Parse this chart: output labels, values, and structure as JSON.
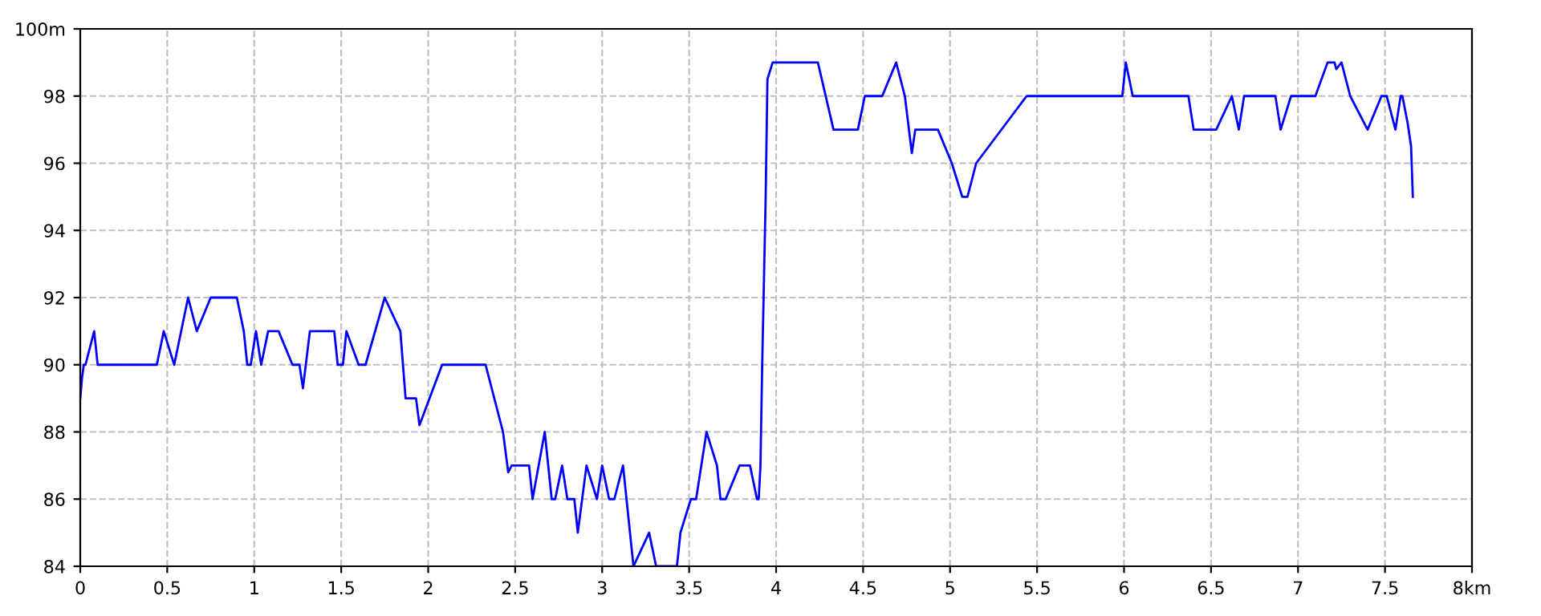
{
  "chart_data": {
    "type": "line",
    "x": [
      0,
      0.01,
      0.02,
      0.03,
      0.08,
      0.1,
      0.44,
      0.48,
      0.54,
      0.62,
      0.67,
      0.75,
      0.9,
      0.94,
      0.96,
      0.98,
      1.01,
      1.04,
      1.08,
      1.14,
      1.22,
      1.26,
      1.28,
      1.32,
      1.46,
      1.48,
      1.51,
      1.53,
      1.6,
      1.64,
      1.75,
      1.84,
      1.87,
      1.93,
      1.95,
      2.08,
      2.33,
      2.43,
      2.46,
      2.48,
      2.58,
      2.6,
      2.67,
      2.71,
      2.73,
      2.77,
      2.8,
      2.84,
      2.86,
      2.91,
      2.97,
      3.0,
      3.04,
      3.07,
      3.12,
      3.18,
      3.27,
      3.31,
      3.43,
      3.45,
      3.51,
      3.54,
      3.6,
      3.66,
      3.68,
      3.71,
      3.79,
      3.85,
      3.89,
      3.9,
      3.91,
      3.92,
      3.94,
      3.95,
      3.98,
      4.24,
      4.33,
      4.47,
      4.51,
      4.61,
      4.69,
      4.74,
      4.78,
      4.8,
      4.93,
      5.01,
      5.07,
      5.1,
      5.15,
      5.44,
      5.99,
      6.01,
      6.05,
      6.37,
      6.4,
      6.53,
      6.62,
      6.66,
      6.69,
      6.87,
      6.9,
      6.96,
      7.1,
      7.17,
      7.21,
      7.22,
      7.25,
      7.3,
      7.4,
      7.48,
      7.51,
      7.56,
      7.59,
      7.6,
      7.63,
      7.65,
      7.66
    ],
    "series": [
      {
        "color": "#0000ff",
        "values": [
          89,
          89.6,
          90,
          90,
          91,
          90,
          90,
          91,
          90,
          92,
          91,
          92,
          92,
          91,
          90,
          90,
          91,
          90,
          91,
          91,
          90,
          90,
          89.3,
          91,
          91,
          90,
          90,
          91,
          90,
          90,
          92,
          91,
          89,
          89,
          88.2,
          90,
          90,
          88,
          86.8,
          87,
          87,
          86,
          88,
          86,
          86,
          87,
          86,
          86,
          85,
          87,
          86,
          87,
          86,
          86,
          87,
          84,
          85,
          84,
          84,
          85,
          86,
          86,
          88,
          87,
          86,
          86,
          87,
          87,
          86,
          86,
          87,
          90,
          95,
          98.5,
          99,
          99,
          97,
          97,
          98,
          98,
          99,
          98,
          96.3,
          97,
          97,
          96,
          95,
          95,
          96,
          98,
          98,
          99,
          98,
          98,
          97,
          97,
          98,
          97,
          98,
          98,
          97,
          98,
          98,
          99,
          99,
          98.8,
          99,
          98,
          97,
          98,
          98,
          97,
          98,
          98,
          97.2,
          96.5,
          95
        ]
      }
    ],
    "xlim": [
      0,
      8
    ],
    "ylim": [
      84,
      100
    ],
    "xticks": [
      0,
      0.5,
      1,
      1.5,
      2,
      2.5,
      3,
      3.5,
      4,
      4.5,
      5,
      5.5,
      6,
      6.5,
      7,
      7.5,
      {
        "value": 8,
        "label": "8km"
      }
    ],
    "yticks": [
      84,
      86,
      88,
      90,
      92,
      94,
      96,
      98,
      {
        "value": 100,
        "label": "100m"
      }
    ],
    "grid": true,
    "line_style": "solid",
    "marker": "none"
  }
}
